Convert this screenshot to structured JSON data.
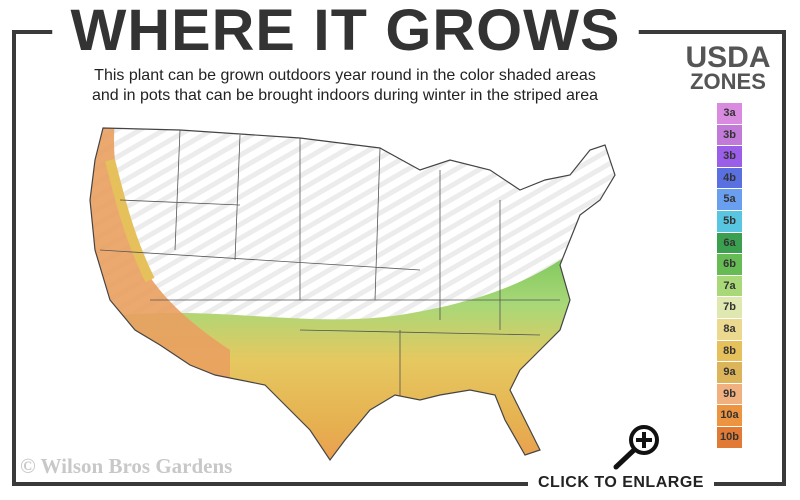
{
  "header": {
    "title": "WHERE IT GROWS",
    "subtitle_line1": "This plant can be grown outdoors year round in the color shaded areas",
    "subtitle_line2": "and in pots that can be brought indoors during winter in the striped area"
  },
  "legend": {
    "title_line1": "USDA",
    "title_line2": "ZONES",
    "zones": [
      {
        "label": "3a",
        "color": "#d98be0"
      },
      {
        "label": "3b",
        "color": "#c27ad8"
      },
      {
        "label": "3b",
        "color": "#9b5ee8"
      },
      {
        "label": "4b",
        "color": "#5a6fe0"
      },
      {
        "label": "5a",
        "color": "#6a9ff0"
      },
      {
        "label": "5b",
        "color": "#58c6e0"
      },
      {
        "label": "6a",
        "color": "#3aa050"
      },
      {
        "label": "6b",
        "color": "#66bb55"
      },
      {
        "label": "7a",
        "color": "#a8d878"
      },
      {
        "label": "7b",
        "color": "#dfe8b0"
      },
      {
        "label": "8a",
        "color": "#ecd990"
      },
      {
        "label": "8b",
        "color": "#e6c05a"
      },
      {
        "label": "9a",
        "color": "#dcb45a"
      },
      {
        "label": "9b",
        "color": "#f0b080"
      },
      {
        "label": "10a",
        "color": "#ec9440"
      },
      {
        "label": "10b",
        "color": "#e07a35"
      }
    ]
  },
  "footer": {
    "copyright": "© Wilson Bros Gardens",
    "enlarge_label": "CLICK TO ENLARGE",
    "enlarge_icon": "magnifier-plus-icon"
  }
}
